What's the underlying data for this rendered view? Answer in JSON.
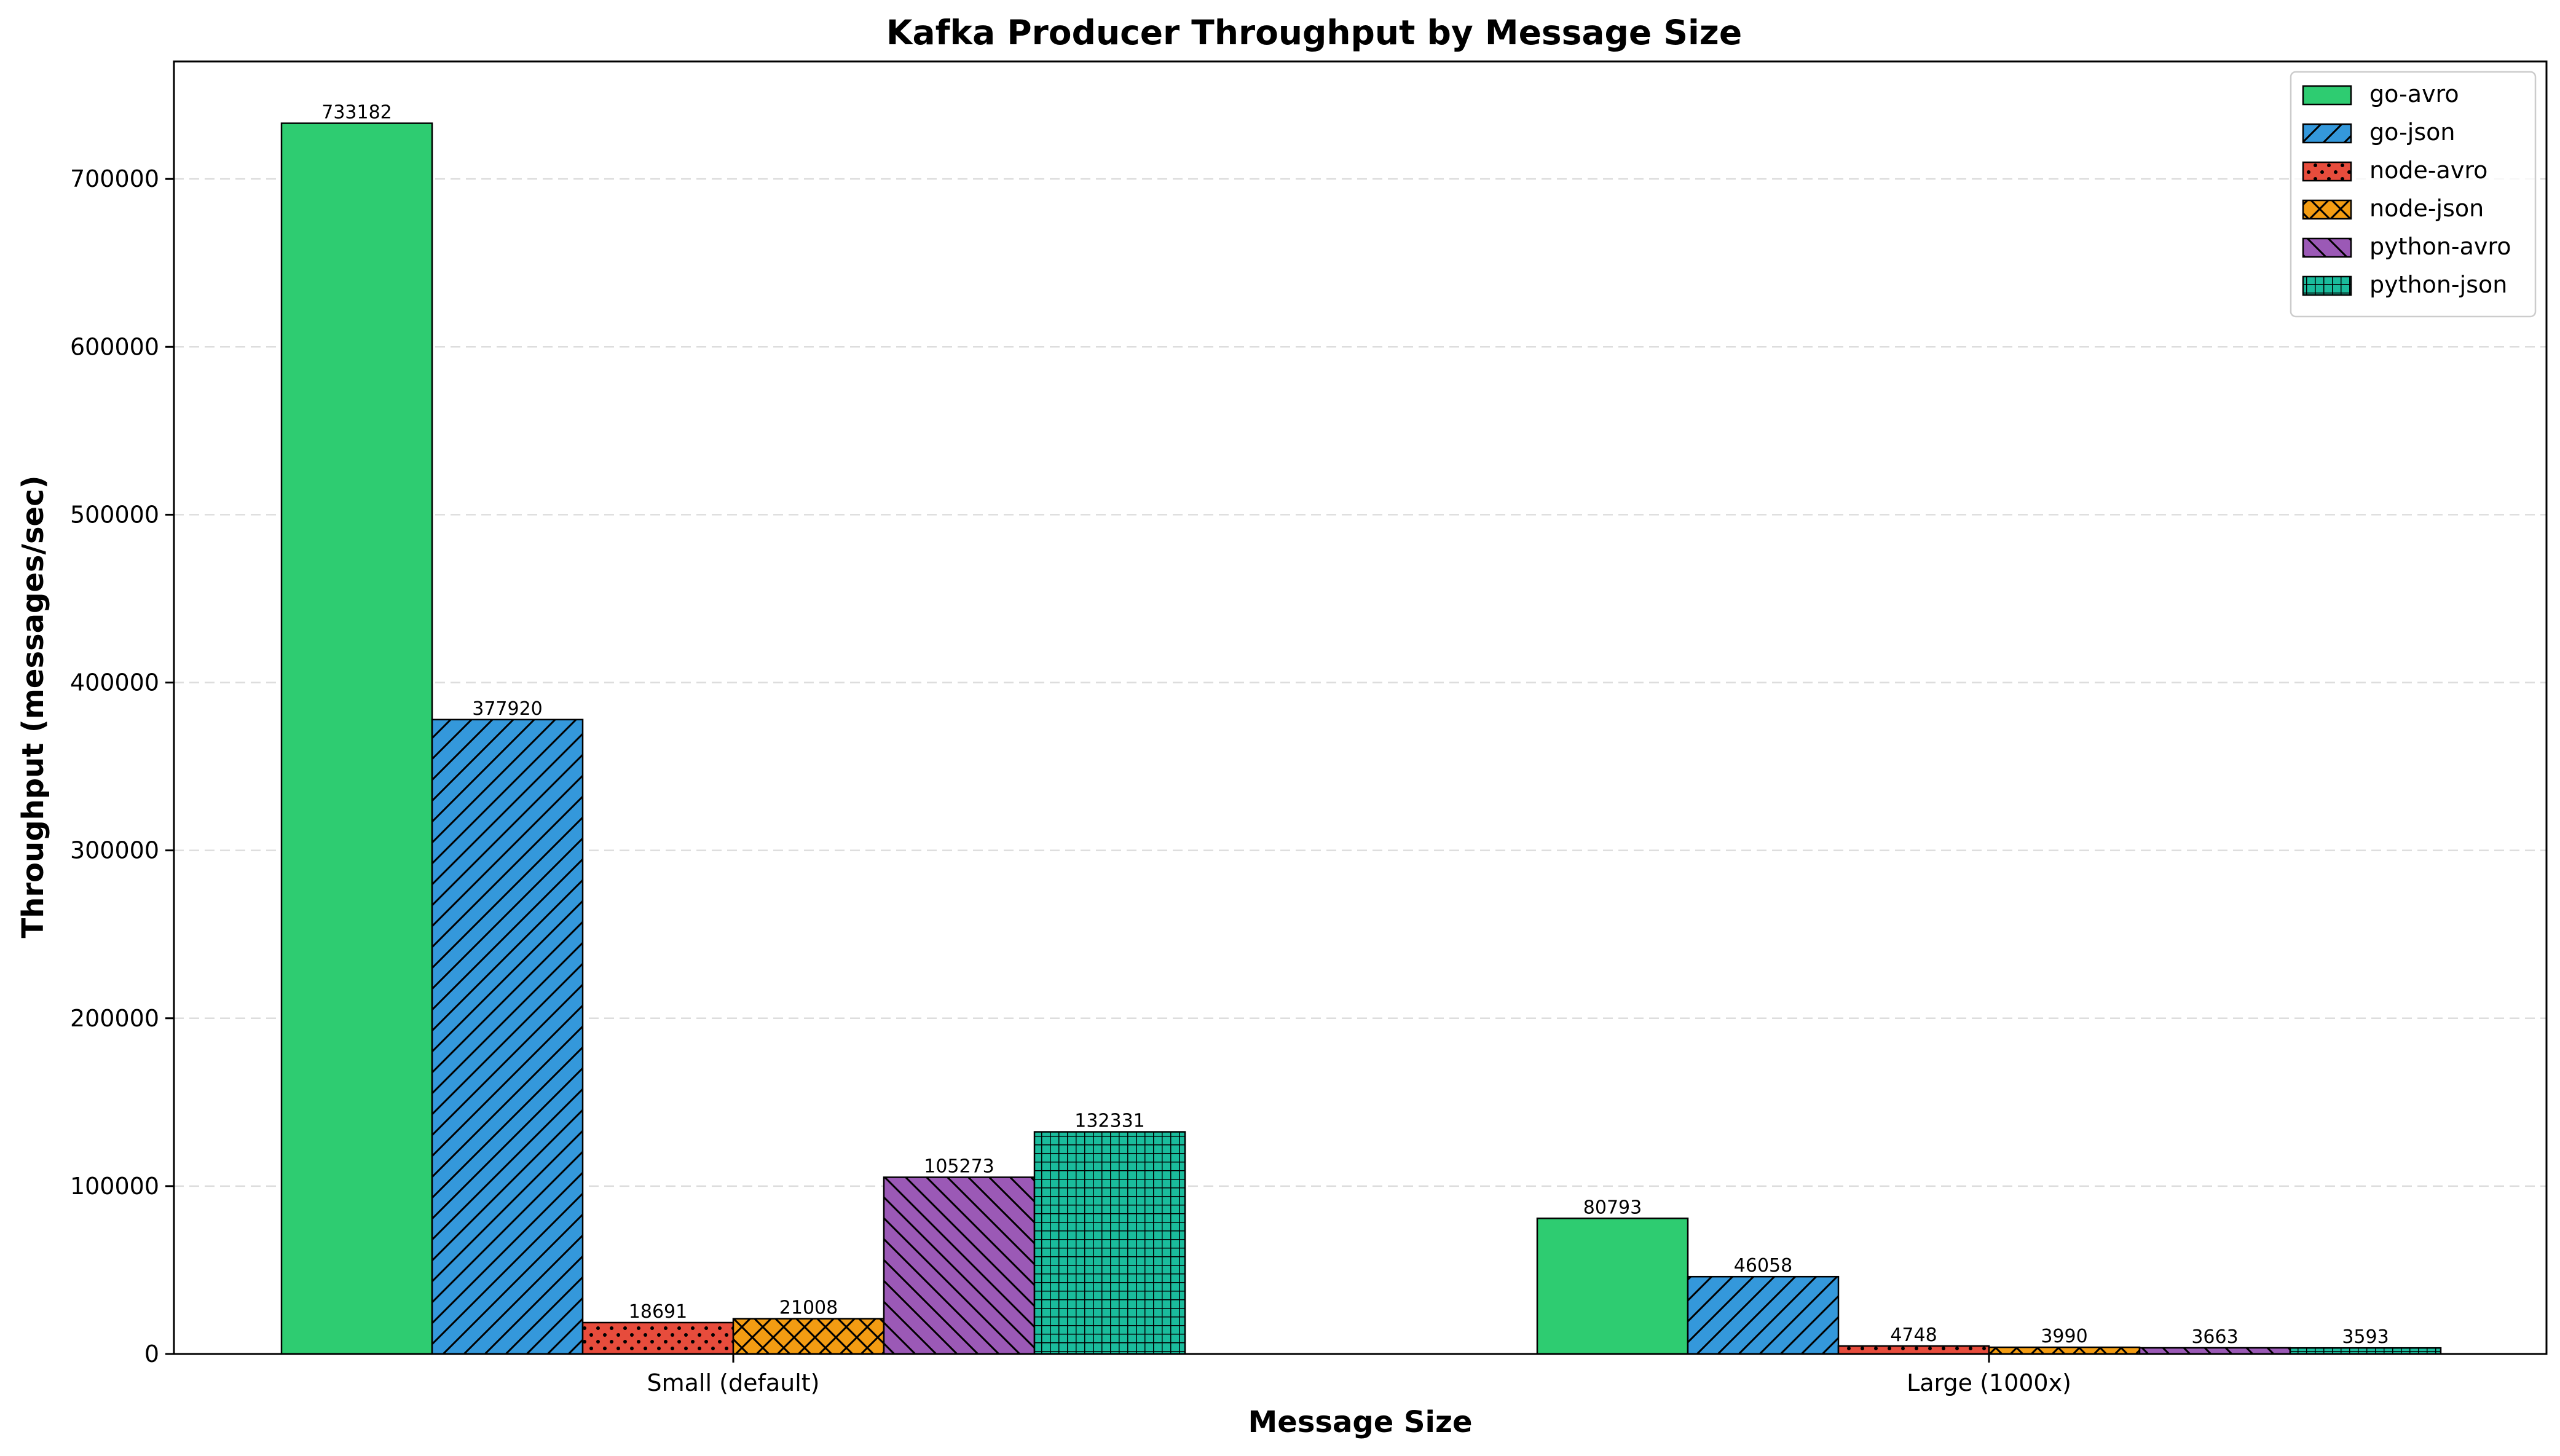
{
  "chart_data": {
    "type": "bar",
    "title": "Kafka Producer Throughput by Message Size",
    "xlabel": "Message Size",
    "ylabel": "Throughput (messages/sec)",
    "categories": [
      "Small (default)",
      "Large (1000x)"
    ],
    "ylim": [
      0,
      770000
    ],
    "yticks": [
      0,
      100000,
      200000,
      300000,
      400000,
      500000,
      600000,
      700000
    ],
    "grid": true,
    "legend_position": "top-right",
    "series": [
      {
        "name": "go-avro",
        "values": [
          733182,
          80793
        ],
        "color": "#2ecc71",
        "hatch": "none"
      },
      {
        "name": "go-json",
        "values": [
          377920,
          46058
        ],
        "color": "#3498db",
        "hatch": "diagonal"
      },
      {
        "name": "node-avro",
        "values": [
          18691,
          4748
        ],
        "color": "#e74c3c",
        "hatch": "dots"
      },
      {
        "name": "node-json",
        "values": [
          21008,
          3990
        ],
        "color": "#f39c12",
        "hatch": "crosshatch"
      },
      {
        "name": "python-avro",
        "values": [
          105273,
          3663
        ],
        "color": "#9b59b6",
        "hatch": "back-diagonal"
      },
      {
        "name": "python-json",
        "values": [
          132331,
          3593
        ],
        "color": "#1abc9c",
        "hatch": "grid"
      }
    ]
  }
}
